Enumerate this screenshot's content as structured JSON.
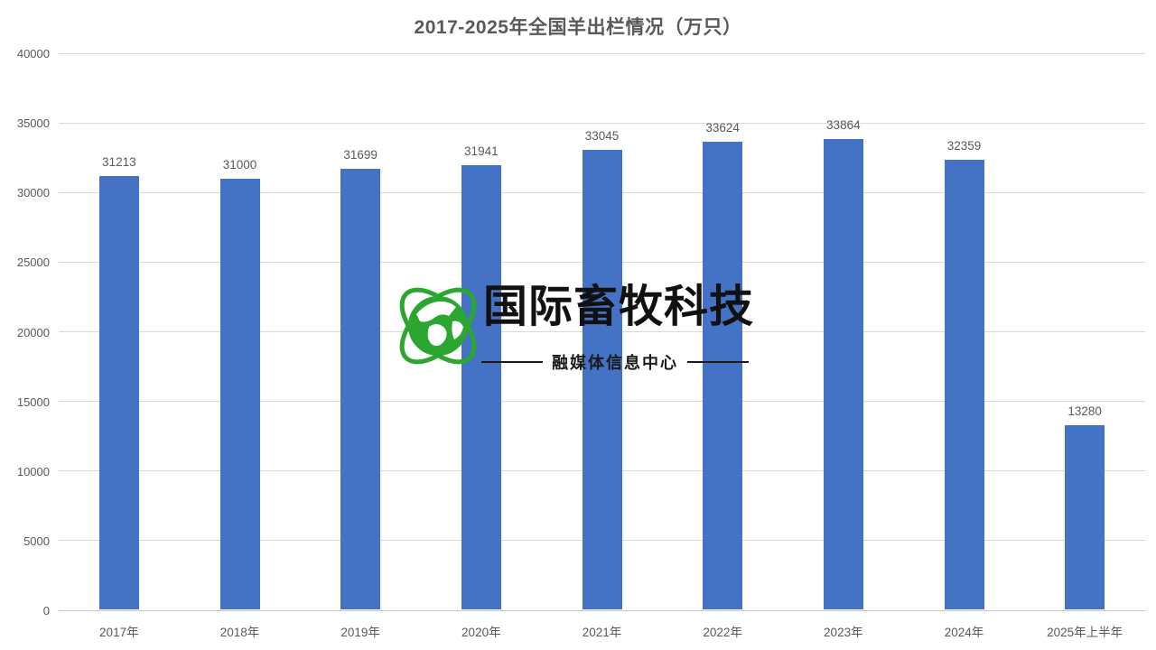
{
  "chart_data": {
    "type": "bar",
    "title": "2017-2025年全国羊出栏情况（万只）",
    "categories": [
      "2017年",
      "2018年",
      "2019年",
      "2020年",
      "2021年",
      "2022年",
      "2023年",
      "2024年",
      "2025年上半年"
    ],
    "values": [
      31213,
      31000,
      31699,
      31941,
      33045,
      33624,
      33864,
      32359,
      13280
    ],
    "value_labels": [
      "31213",
      "31000",
      "31699",
      "31941",
      "33045",
      "33624",
      "33864",
      "32359",
      "13280"
    ],
    "ylim": [
      0,
      40000
    ],
    "ytick_step": 5000,
    "ytick_labels": [
      "0",
      "5000",
      "10000",
      "15000",
      "20000",
      "25000",
      "30000",
      "35000",
      "40000"
    ],
    "grid": true,
    "legend": "none",
    "xlabel": "",
    "ylabel": "",
    "bar_color": "#4472C4",
    "text_color": "#595959",
    "grid_color": "#D9D9D9",
    "axis_color": "#C6C6C6"
  },
  "watermark": {
    "brand": "国际畜牧科技",
    "subtitle": "融媒体信息中心",
    "logo": "globe-orbit-icon",
    "logo_green": "#2BA62F",
    "text_color": "#111111"
  }
}
